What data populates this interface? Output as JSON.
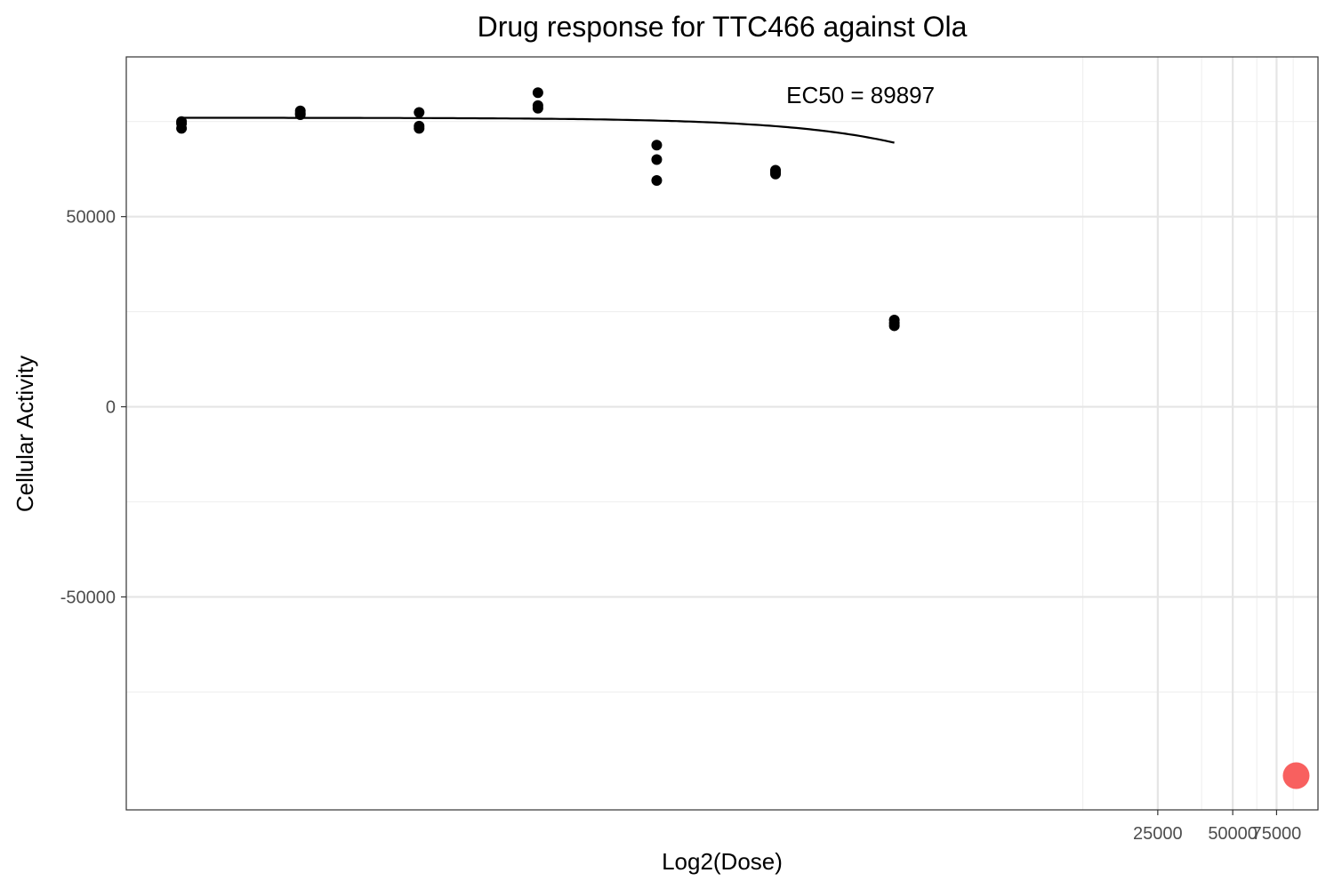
{
  "chart_data": {
    "type": "scatter",
    "title": "Drug response for TTC466 against Ola",
    "xlabel": "Log2(Dose)",
    "ylabel": "Cellular Activity",
    "x_scale": "log2",
    "xlim": [
      1.8,
      110000
    ],
    "ylim": [
      -106000,
      92000
    ],
    "grid": true,
    "y_ticks": [
      50000,
      0,
      -50000
    ],
    "y_tick_labels": [
      "50000",
      "0",
      "-50000"
    ],
    "x_ticks": [
      25000,
      50000,
      75000
    ],
    "x_tick_labels": [
      "25000",
      "50000",
      "75000"
    ],
    "x_minor_ticks": [
      12500,
      37500,
      62500,
      87500
    ],
    "y_minor_ticks": [
      75000,
      25000,
      -25000,
      -75000
    ],
    "series": [
      {
        "color": "#000000",
        "points": [
          {
            "x": 3,
            "y": 75000
          },
          {
            "x": 3,
            "y": 74500
          },
          {
            "x": 3,
            "y": 73200
          },
          {
            "x": 9,
            "y": 77800
          },
          {
            "x": 9,
            "y": 77200
          },
          {
            "x": 9,
            "y": 76800
          },
          {
            "x": 27,
            "y": 77400
          },
          {
            "x": 27,
            "y": 73800
          },
          {
            "x": 27,
            "y": 73200
          },
          {
            "x": 81,
            "y": 82600
          },
          {
            "x": 81,
            "y": 79200
          },
          {
            "x": 81,
            "y": 78500
          },
          {
            "x": 243,
            "y": 68800
          },
          {
            "x": 243,
            "y": 65000
          },
          {
            "x": 243,
            "y": 59500
          },
          {
            "x": 729,
            "y": 62200
          },
          {
            "x": 729,
            "y": 61700
          },
          {
            "x": 729,
            "y": 61200
          },
          {
            "x": 2187,
            "y": 22800
          },
          {
            "x": 2187,
            "y": 22000
          },
          {
            "x": 2187,
            "y": 21300
          }
        ]
      }
    ],
    "fit_curve": {
      "color": "#000000",
      "model": "4PL",
      "top": 76000,
      "bottom": -200000,
      "ec50": 89897,
      "hill": 1.0,
      "x_range": [
        3,
        2187
      ]
    },
    "highlight_point": {
      "x": 89897,
      "y": -97000,
      "color": "#F8605F"
    },
    "annotation": {
      "text": "EC50 = 89897",
      "x": 1600,
      "y": 82000
    }
  }
}
